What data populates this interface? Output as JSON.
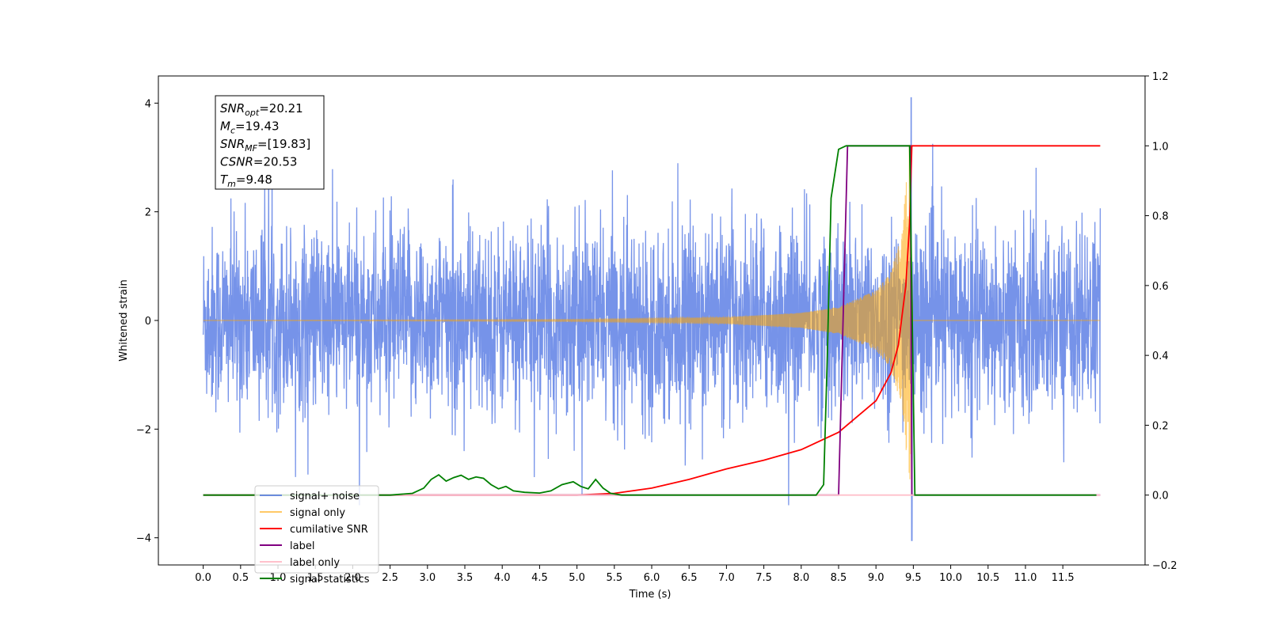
{
  "chart_data": {
    "type": "line",
    "xlabel": "Time (s)",
    "ylabel_left": "Whitened strain",
    "xlim": [
      -0.6,
      12.6
    ],
    "ylim_left": [
      -4.5,
      4.5
    ],
    "ylim_right": [
      -0.2,
      1.2
    ],
    "x_ticks": [
      0.0,
      0.5,
      1.0,
      1.5,
      2.0,
      2.5,
      3.0,
      3.5,
      4.0,
      4.5,
      5.0,
      5.5,
      6.0,
      6.5,
      7.0,
      7.5,
      8.0,
      8.5,
      9.0,
      9.5,
      10.0,
      10.5,
      11.0,
      11.5
    ],
    "x_tick_labels": [
      "0.0",
      "0.5",
      "1.0",
      "1.5",
      "2.0",
      "2.5",
      "3.0",
      "3.5",
      "4.0",
      "4.5",
      "5.0",
      "5.5",
      "6.0",
      "6.5",
      "7.0",
      "7.5",
      "8.0",
      "8.5",
      "9.0",
      "9.5",
      "10.0",
      "10.5",
      "11.0",
      "11.5"
    ],
    "y_left_ticks": [
      -4,
      -2,
      0,
      2,
      4
    ],
    "y_left_tick_labels": [
      "−4",
      "−2",
      "0",
      "2",
      "4"
    ],
    "y_right_ticks": [
      -0.2,
      0.0,
      0.2,
      0.4,
      0.6,
      0.8,
      1.0,
      1.2
    ],
    "y_right_tick_labels": [
      "−0.2",
      "0.0",
      "0.2",
      "0.4",
      "0.6",
      "0.8",
      "1.0",
      "1.2"
    ],
    "grid": false,
    "legend_position": "lower-left",
    "annotation": {
      "lines": [
        {
          "main": "SNR",
          "sub": "opt",
          "value": "=20.21"
        },
        {
          "main": "M",
          "sub": "c",
          "value": "=19.43"
        },
        {
          "main": "SNR",
          "sub": "MF",
          "value": "=[19.83]"
        },
        {
          "main": "CSNR",
          "sub": "",
          "value": "=20.53"
        },
        {
          "main": "T",
          "sub": "m",
          "value": "=9.48"
        }
      ]
    },
    "series": [
      {
        "name": "signal+ noise",
        "axis": "left",
        "color": "#4169e1",
        "kind": "noise",
        "x_range": [
          0.0,
          12.0
        ],
        "typical_amplitude": 1.8,
        "max_value": 4.1,
        "min_value": -4.05,
        "notes_peak_time": 9.47
      },
      {
        "name": "signal only",
        "axis": "left",
        "color": "#ffa500",
        "kind": "chirp",
        "x_range": [
          0.0,
          12.0
        ],
        "envelope": [
          [
            0.0,
            0.0
          ],
          [
            5.0,
            0.02
          ],
          [
            7.0,
            0.06
          ],
          [
            8.0,
            0.14
          ],
          [
            8.5,
            0.25
          ],
          [
            9.0,
            0.55
          ],
          [
            9.2,
            0.9
          ],
          [
            9.35,
            1.6
          ],
          [
            9.45,
            3.3
          ],
          [
            9.49,
            0.0
          ],
          [
            12.0,
            0.0
          ]
        ]
      },
      {
        "name": "cumilative SNR",
        "axis": "right",
        "color": "#ff0000",
        "x": [
          0.0,
          5.0,
          5.5,
          6.0,
          6.5,
          7.0,
          7.5,
          8.0,
          8.5,
          9.0,
          9.2,
          9.3,
          9.4,
          9.45,
          9.48,
          12.0
        ],
        "y": [
          0.0,
          0.0,
          0.005,
          0.02,
          0.045,
          0.075,
          0.1,
          0.13,
          0.18,
          0.27,
          0.35,
          0.43,
          0.6,
          0.78,
          1.0,
          1.0
        ]
      },
      {
        "name": "label",
        "axis": "right",
        "color": "#800080",
        "x": [
          0.0,
          8.5,
          8.62,
          9.46,
          9.48,
          12.0
        ],
        "y": [
          0.0,
          0.0,
          1.0,
          1.0,
          0.0,
          0.0
        ]
      },
      {
        "name": "label only",
        "axis": "right",
        "color": "#ffc0cb",
        "x": [
          0.0,
          12.0
        ],
        "y": [
          0.0,
          0.0
        ]
      },
      {
        "name": "signal statistics",
        "axis": "right",
        "color": "#008000",
        "x": [
          0.0,
          2.5,
          2.8,
          2.95,
          3.05,
          3.15,
          3.25,
          3.35,
          3.45,
          3.55,
          3.65,
          3.75,
          3.85,
          3.95,
          4.05,
          4.15,
          4.3,
          4.5,
          4.65,
          4.8,
          4.95,
          5.05,
          5.15,
          5.25,
          5.35,
          5.45,
          5.6,
          6.0,
          8.2,
          8.3,
          8.35,
          8.4,
          8.5,
          8.6,
          9.0,
          9.45,
          9.52,
          11.95
        ],
        "y": [
          0.0,
          0.0,
          0.005,
          0.02,
          0.045,
          0.058,
          0.04,
          0.05,
          0.057,
          0.045,
          0.052,
          0.048,
          0.03,
          0.018,
          0.025,
          0.012,
          0.008,
          0.006,
          0.012,
          0.03,
          0.038,
          0.025,
          0.018,
          0.045,
          0.02,
          0.005,
          0.0,
          0.0,
          0.0,
          0.03,
          0.4,
          0.85,
          0.99,
          1.0,
          1.0,
          1.0,
          0.0,
          0.0
        ]
      }
    ]
  }
}
